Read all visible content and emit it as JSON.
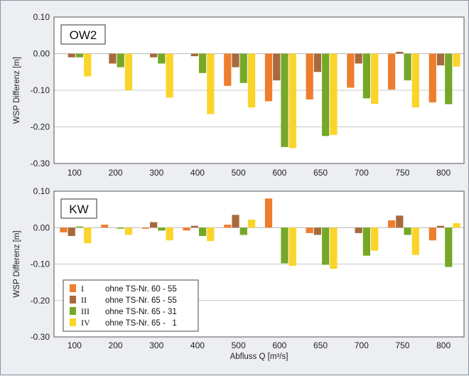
{
  "chart_data": [
    {
      "type": "bar",
      "panel_label": "OW2",
      "ylabel": "WSP Differenz [m]",
      "xlabel": "",
      "ylim": [
        -0.3,
        0.1
      ],
      "yticks": [
        "0.10",
        "0.00",
        "-0.10",
        "-0.20",
        "-0.30"
      ],
      "ytick_values": [
        0.1,
        0.0,
        -0.1,
        -0.2,
        -0.3
      ],
      "categories": [
        "100",
        "200",
        "300",
        "400",
        "500",
        "600",
        "650",
        "700",
        "750",
        "800"
      ],
      "grid": true,
      "series": [
        {
          "name": "I",
          "values": [
            0.0,
            0.0,
            0.0,
            0.0,
            -0.088,
            -0.13,
            -0.125,
            -0.093,
            -0.098,
            -0.133
          ]
        },
        {
          "name": "II",
          "values": [
            -0.01,
            -0.027,
            -0.01,
            -0.007,
            -0.037,
            -0.073,
            -0.05,
            -0.027,
            0.005,
            -0.032
          ]
        },
        {
          "name": "III",
          "values": [
            -0.01,
            -0.037,
            -0.027,
            -0.053,
            -0.08,
            -0.255,
            -0.225,
            -0.122,
            -0.073,
            -0.138
          ]
        },
        {
          "name": "IV",
          "values": [
            -0.062,
            -0.1,
            -0.12,
            -0.165,
            -0.147,
            -0.258,
            -0.222,
            -0.137,
            -0.147,
            -0.035
          ]
        }
      ]
    },
    {
      "type": "bar",
      "panel_label": "KW",
      "ylabel": "WSP Differenz [m]",
      "xlabel": "Abfluss Q [m³/s]",
      "ylim": [
        -0.3,
        0.1
      ],
      "yticks": [
        "0.10",
        "0.00",
        "-0.10",
        "-0.20",
        "-0.30"
      ],
      "ytick_values": [
        0.1,
        0.0,
        -0.1,
        -0.2,
        -0.3
      ],
      "categories": [
        "100",
        "200",
        "300",
        "400",
        "500",
        "600",
        "650",
        "700",
        "750",
        "800"
      ],
      "grid": true,
      "legend_position": "bottom-left",
      "series": [
        {
          "name": "I",
          "values": [
            -0.013,
            0.008,
            -0.003,
            -0.008,
            0.008,
            0.08,
            -0.015,
            0.0,
            0.02,
            -0.035
          ]
        },
        {
          "name": "II",
          "values": [
            -0.023,
            0.0,
            0.015,
            0.005,
            0.035,
            0.0,
            -0.02,
            -0.015,
            0.033,
            0.005
          ]
        },
        {
          "name": "III",
          "values": [
            0.003,
            -0.003,
            -0.008,
            -0.023,
            -0.02,
            -0.098,
            -0.102,
            -0.077,
            -0.02,
            -0.108
          ]
        },
        {
          "name": "IV",
          "values": [
            -0.043,
            -0.02,
            -0.035,
            -0.037,
            0.022,
            -0.105,
            -0.113,
            -0.063,
            -0.075,
            0.012
          ]
        }
      ]
    }
  ],
  "colors": {
    "I": "#ee7d2e",
    "II": "#a86a3c",
    "III": "#76a827",
    "IV": "#fbd42a"
  },
  "legend": {
    "items": [
      {
        "roman": "I",
        "text": "ohne TS-Nr. 60 - 55"
      },
      {
        "roman": "II",
        "text": "ohne TS-Nr. 65 - 55"
      },
      {
        "roman": "III",
        "text": "ohne TS-Nr. 65 - 31"
      },
      {
        "roman": "IV",
        "text": "ohne TS-Nr. 65 -   1"
      }
    ]
  }
}
